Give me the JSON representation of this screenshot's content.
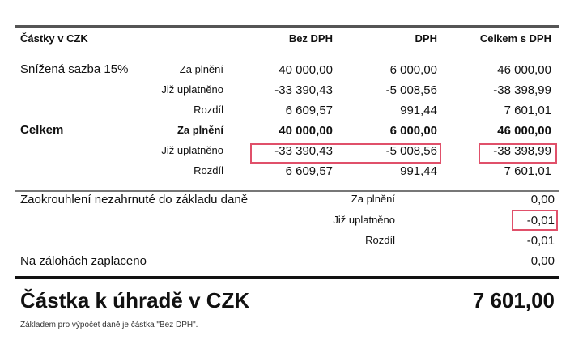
{
  "header": {
    "title": "Částky v CZK",
    "columns": [
      "Bez DPH",
      "DPH",
      "Celkem s DPH"
    ]
  },
  "sections": [
    {
      "label": "Snížená sazba 15%",
      "bold": false,
      "rows": [
        {
          "label": "Za plnění",
          "values": [
            "40 000,00",
            "6 000,00",
            "46 000,00"
          ]
        },
        {
          "label": "Již uplatněno",
          "values": [
            "-33 390,43",
            "-5 008,56",
            "-38 398,99"
          ]
        },
        {
          "label": "Rozdíl",
          "values": [
            "6 609,57",
            "991,44",
            "7 601,01"
          ]
        }
      ]
    },
    {
      "label": "Celkem",
      "bold": true,
      "rows": [
        {
          "label": "Za plnění",
          "values": [
            "40 000,00",
            "6 000,00",
            "46 000,00"
          ]
        },
        {
          "label": "Již uplatněno",
          "values": [
            "-33 390,43",
            "-5 008,56",
            "-38 398,99"
          ]
        },
        {
          "label": "Rozdíl",
          "values": [
            "6 609,57",
            "991,44",
            "7 601,01"
          ]
        }
      ]
    }
  ],
  "rounding": {
    "label": "Zaokrouhlení nezahrnuté do základu daně",
    "rows": [
      {
        "label": "Za plnění",
        "value": "0,00"
      },
      {
        "label": "Již uplatněno",
        "value": "-0,01"
      },
      {
        "label": "Rozdíl",
        "value": "-0,01"
      }
    ]
  },
  "advances": {
    "label": "Na zálohách zaplaceno",
    "value": "0,00"
  },
  "total": {
    "label": "Částka k úhradě v CZK",
    "value": "7 601,00"
  },
  "footnote": "Základem pro výpočet daně je částka \"Bez DPH\".",
  "highlight_color": "#e0506a"
}
